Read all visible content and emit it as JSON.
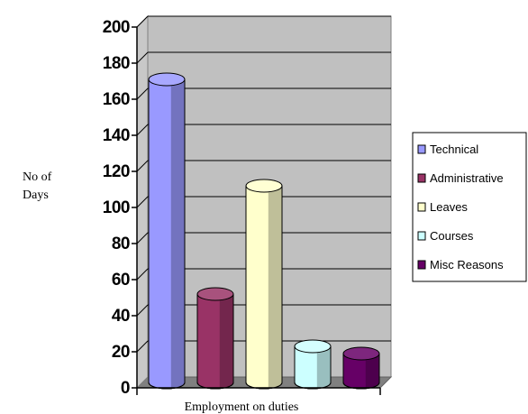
{
  "chart_data": {
    "type": "bar",
    "categories": [
      "Technical",
      "Administrative",
      "Leaves",
      "Courses",
      "Misc Reasons"
    ],
    "values": [
      168,
      49,
      109,
      20,
      16
    ],
    "colors": [
      "#9999ff",
      "#993366",
      "#ffffcc",
      "#ccffff",
      "#660066"
    ],
    "ylim": [
      0,
      200
    ],
    "yticks": [
      "0",
      "20",
      "40",
      "60",
      "80",
      "100",
      "120",
      "140",
      "160",
      "180",
      "200"
    ],
    "ylabel_line1": "No of",
    "ylabel_line2": "Days",
    "xlabel": "Employment on duties",
    "grid": true,
    "legend_position": "right",
    "style": "3d-cylinder"
  }
}
